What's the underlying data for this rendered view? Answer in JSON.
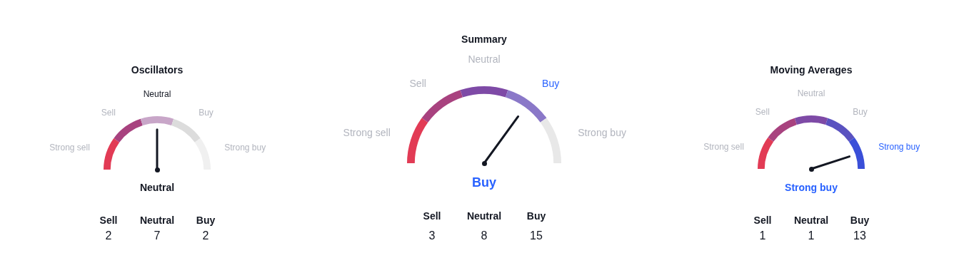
{
  "chart_data": [
    {
      "type": "donut",
      "title": "Oscillators",
      "categories": [
        "Strong sell",
        "Sell",
        "Neutral",
        "Buy",
        "Strong buy"
      ],
      "values": [
        20,
        20,
        20,
        20,
        20
      ],
      "colors": [
        "#e23b55",
        "#a8427f",
        "#c8a6c8",
        "#dcdcdc",
        "#f0f0f0"
      ],
      "needle": "Neutral",
      "annotations": [
        "Neutral"
      ]
    },
    {
      "type": "other",
      "categories": [
        "Sell",
        "Neutral",
        "Buy"
      ],
      "values": [
        2,
        7,
        2
      ],
      "data_labels": true
    },
    {
      "type": "donut",
      "title": "Summary",
      "categories": [
        "Strong sell",
        "Sell",
        "Neutral",
        "Buy",
        "Strong buy"
      ],
      "values": [
        20,
        20,
        20,
        20,
        20
      ],
      "colors": [
        "#e23b55",
        "#a8427f",
        "#7e4aa6",
        "#8a78c8",
        "#e8e8e8"
      ],
      "needle": "Buy",
      "annotations": [
        "Buy"
      ]
    },
    {
      "type": "other",
      "categories": [
        "Sell",
        "Neutral",
        "Buy"
      ],
      "values": [
        3,
        8,
        15
      ],
      "data_labels": true
    },
    {
      "type": "donut",
      "title": "Moving Averages",
      "categories": [
        "Strong sell",
        "Sell",
        "Neutral",
        "Buy",
        "Strong buy"
      ],
      "values": [
        20,
        20,
        20,
        20,
        20
      ],
      "colors": [
        "#e23b55",
        "#a8427f",
        "#7e4aa6",
        "#5a52c0",
        "#3a4fd8"
      ],
      "needle": "Strong buy",
      "annotations": [
        "Strong buy"
      ]
    },
    {
      "type": "other",
      "categories": [
        "Sell",
        "Neutral",
        "Buy"
      ],
      "values": [
        1,
        1,
        13
      ],
      "data_labels": true
    }
  ]
}
